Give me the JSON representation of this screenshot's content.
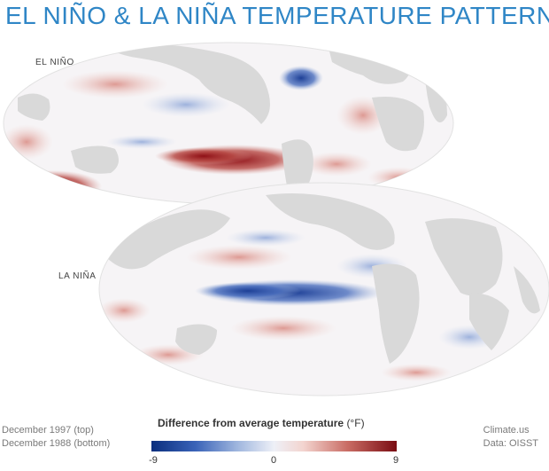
{
  "title": "EL NIÑO & LA NIÑA TEMPERATURE PATTERNS",
  "maps": [
    {
      "label": "EL NIÑO",
      "period": "December 1997 (top)"
    },
    {
      "label": "LA NIÑA",
      "period": "December 1988 (bottom)"
    }
  ],
  "legend": {
    "title": "Difference from average temperature",
    "unit": "(°F)",
    "ticks": [
      "-9",
      "0",
      "9"
    ],
    "min": -9,
    "max": 9,
    "colors": {
      "cold": "#0b2f7e",
      "neutral": "#eef0f7",
      "warm": "#7a0c12"
    }
  },
  "credits": {
    "source": "Climate.us",
    "data": "Data: OISST"
  },
  "colors": {
    "title": "#2f86c6",
    "land": "#d9d9d9",
    "ocean_neutral": "#f6f4f6"
  }
}
